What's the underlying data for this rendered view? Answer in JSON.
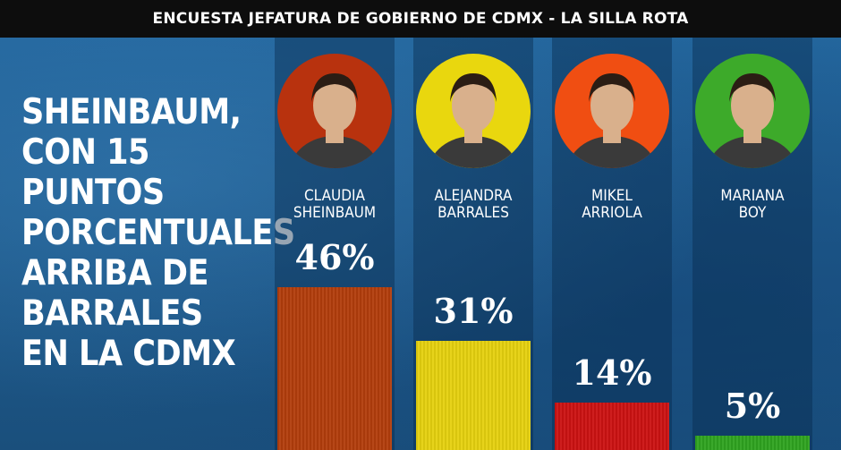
{
  "header": {
    "title": "ENCUESTA JEFATURA DE GOBIERNO DE CDMX - LA SILLA ROTA"
  },
  "headline": "SHEINBAUM,\nCON 15 PUNTOS\nPORCENTUALES\nARRIBA DE\nBARRALES\nEN LA CDMX",
  "chart_data": {
    "type": "bar",
    "categories": [
      "CLAUDIA\nSHEINBAUM",
      "ALEJANDRA\nBARRALES",
      "MIKEL\nARRIOLA",
      "MARIANA\nBOY"
    ],
    "values": [
      46,
      31,
      14,
      5
    ],
    "value_labels": [
      "46%",
      "31%",
      "14%",
      "5%"
    ],
    "colors": [
      "#b23d0c",
      "#e6d10f",
      "#cc1212",
      "#2fa320"
    ],
    "avatar_colors": [
      "#b8320e",
      "#e9d70e",
      "#f04e12",
      "#3daa2a"
    ],
    "ylim": [
      0,
      100
    ],
    "grid": false
  }
}
